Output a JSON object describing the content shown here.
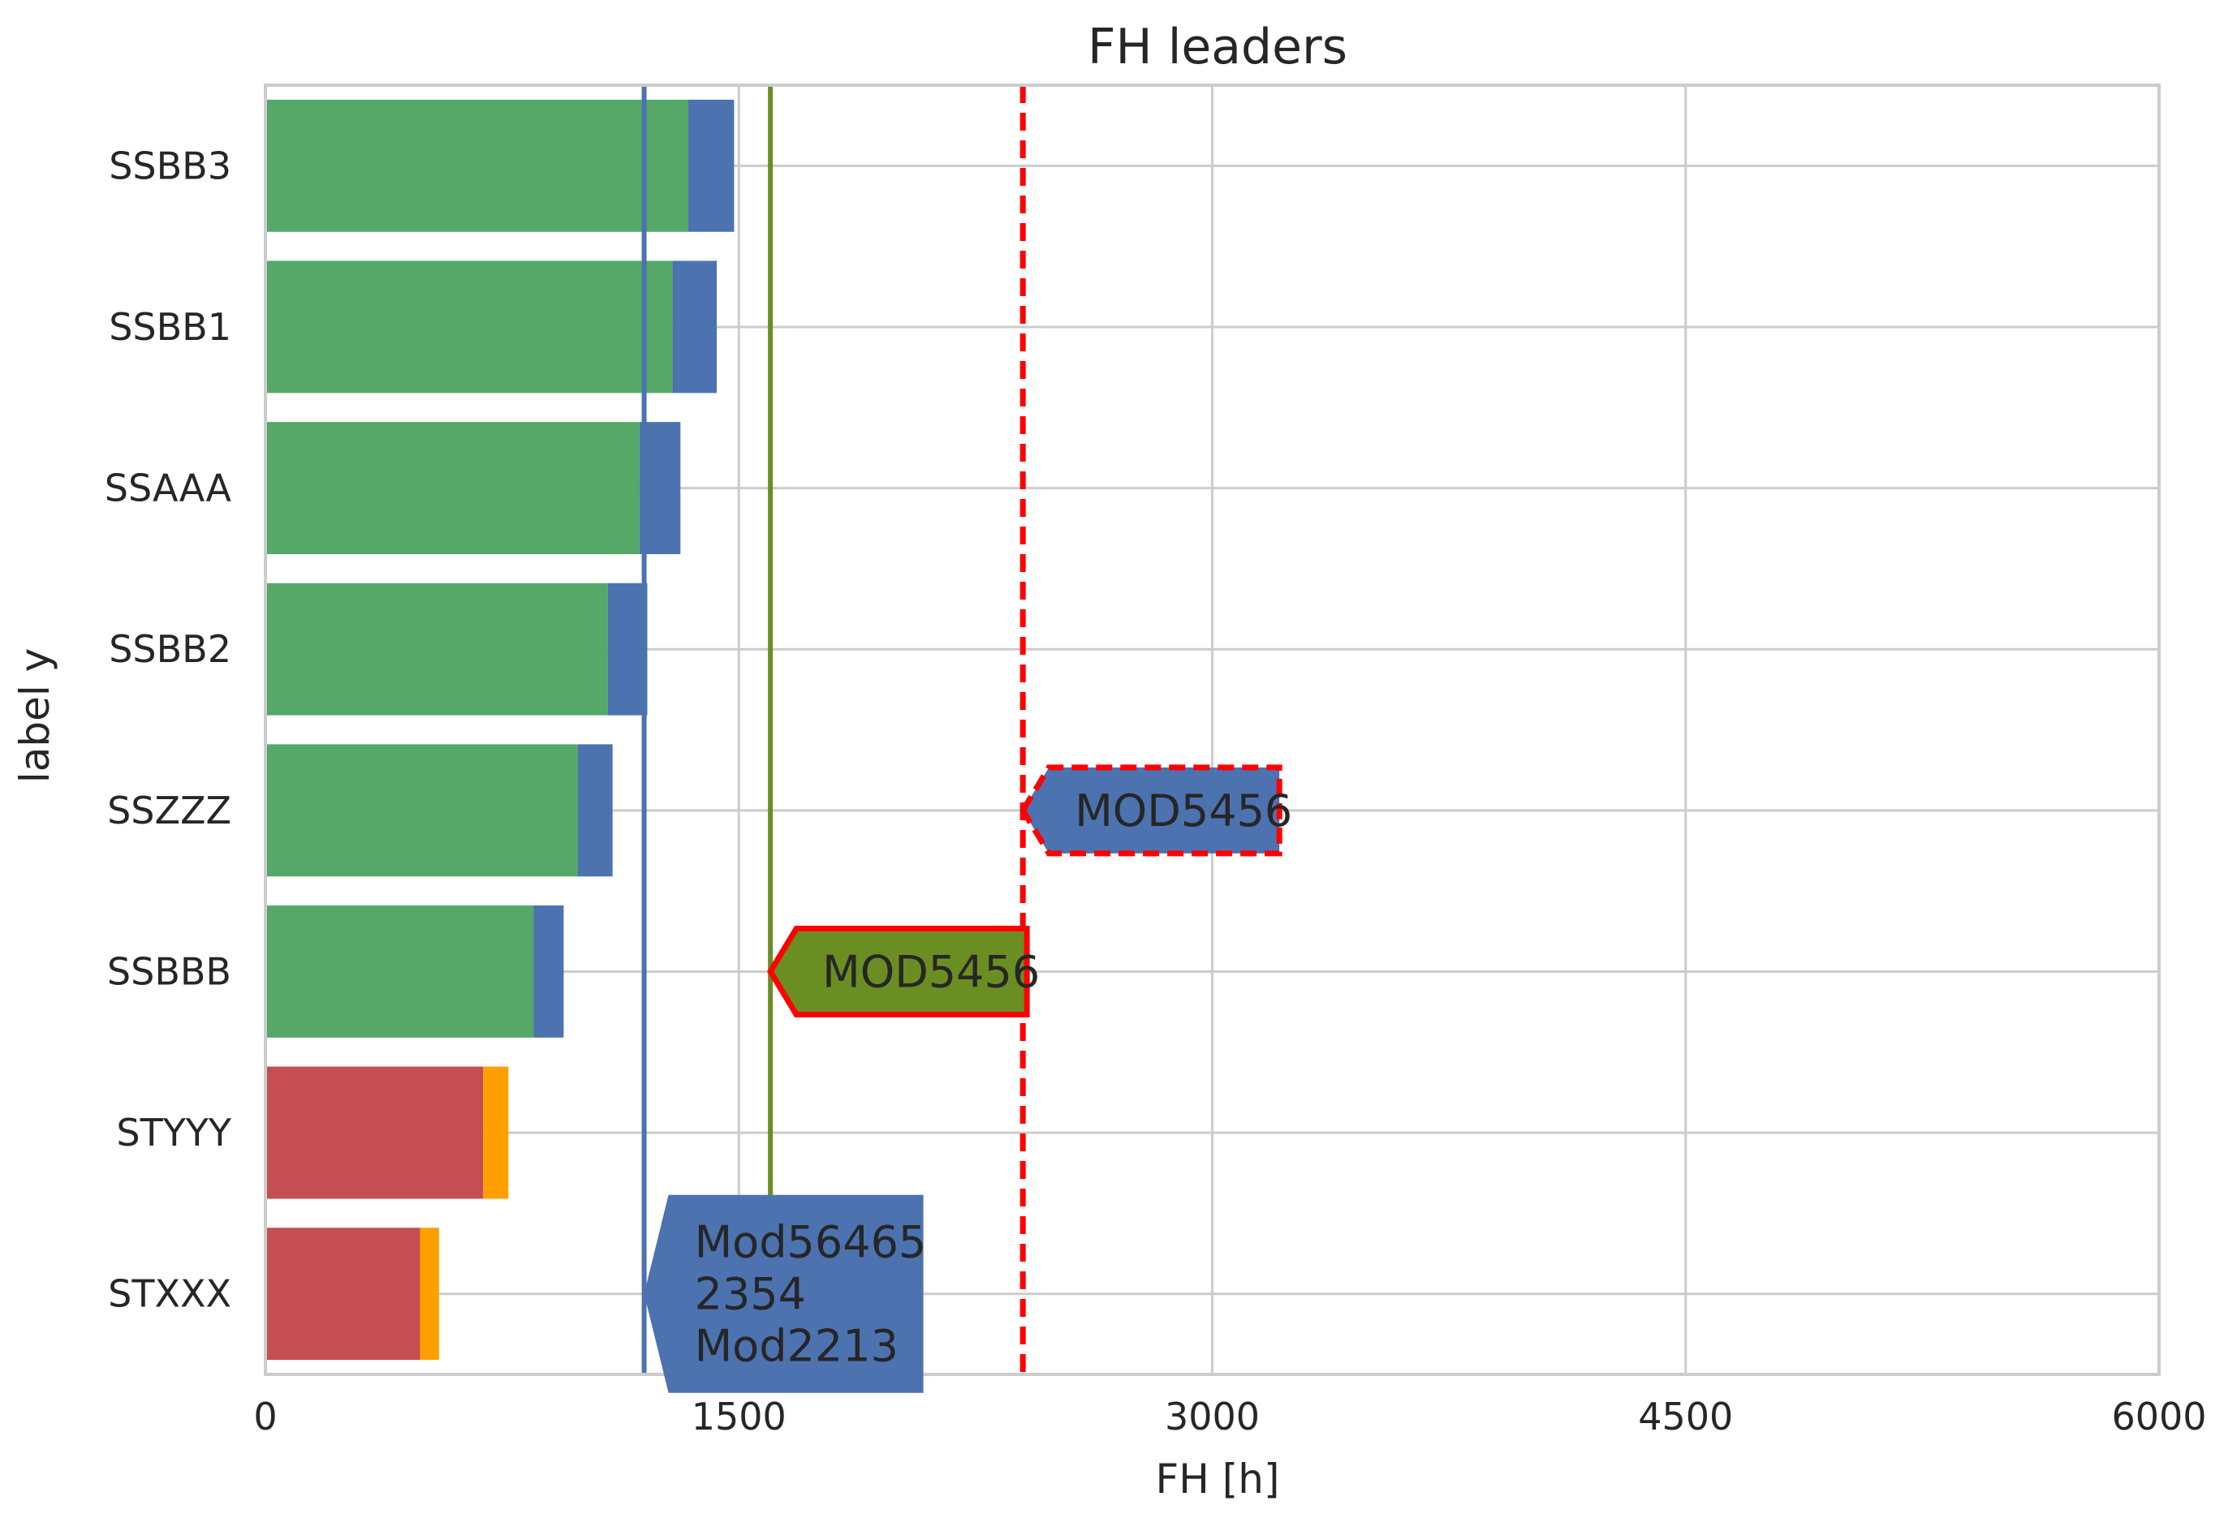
{
  "chart_data": {
    "type": "bar",
    "orientation": "horizontal",
    "stacked": true,
    "title": "FH leaders",
    "xlabel": "FH [h]",
    "ylabel": "label y",
    "xlim": [
      0,
      6000
    ],
    "xticks": [
      "0",
      "1500",
      "3000",
      "4500",
      "6000"
    ],
    "grid": true,
    "categories": [
      "SSBB3",
      "SSBB1",
      "SSAAA",
      "SSBB2",
      "SSZZZ",
      "SSBBB",
      "STYYY",
      "STXXX"
    ],
    "series": [
      {
        "values": [
          1340,
          1290,
          1185,
          1085,
          990,
          850,
          690,
          490
        ],
        "colors": [
          "#55a868",
          "#55a868",
          "#55a868",
          "#55a868",
          "#55a868",
          "#55a868",
          "#c44e52",
          "#c44e52"
        ]
      },
      {
        "values": [
          145,
          140,
          130,
          125,
          110,
          95,
          80,
          60
        ],
        "colors": [
          "#4c72b0",
          "#4c72b0",
          "#4c72b0",
          "#4c72b0",
          "#4c72b0",
          "#4c72b0",
          "#ff9f00",
          "#ff9f00"
        ]
      }
    ],
    "reference_lines": [
      {
        "x": 1200,
        "color": "#4c72b0",
        "style": "solid"
      },
      {
        "x": 1600,
        "color": "#6b8e23",
        "style": "solid"
      },
      {
        "x": 2400,
        "color": "#ff0000",
        "style": "dashed"
      }
    ],
    "annotations": [
      {
        "lines": [
          "MOD5456"
        ],
        "x": 2400,
        "category": "SSZZZ",
        "fill": "#4c72b0",
        "border": "#ff0000",
        "border_style": "dashed"
      },
      {
        "lines": [
          "MOD5456"
        ],
        "x": 1600,
        "category": "SSBBB",
        "fill": "#6b8e23",
        "border": "#ff0000",
        "border_style": "solid"
      },
      {
        "lines": [
          "Mod56465",
          "2354",
          "Mod2213"
        ],
        "x": 1200,
        "category": "STXXX",
        "fill": "#4c72b0",
        "border": "none",
        "border_style": "none"
      }
    ]
  }
}
